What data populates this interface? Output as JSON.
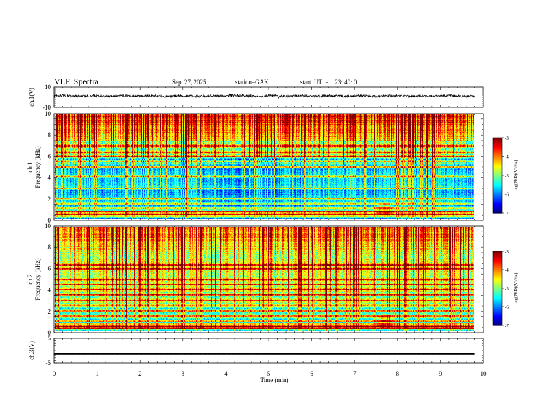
{
  "header": {
    "title": "VLF  Spectra",
    "date": "Sep. 27, 2025",
    "station": "station=GAK",
    "start": "start  UT  =    23: 40: 0"
  },
  "chart_data": [
    {
      "type": "line",
      "name": "ch1-waveform",
      "ylabel": "ch.1(V)",
      "ylim": [
        -10,
        10
      ],
      "ytick_labels": [
        "10",
        "-10"
      ],
      "xlim": [
        0,
        10
      ],
      "baseline_value": 1.2
    },
    {
      "type": "heatmap",
      "name": "ch1-spectrogram",
      "ylabel_line1": "ch.1",
      "ylabel_line2": "Frequency  (kHz)",
      "ylim": [
        0,
        10
      ],
      "ytick_labels": [
        "0",
        "2",
        "4",
        "6",
        "8",
        "10"
      ],
      "xlim": [
        0,
        9.8
      ],
      "colorbar": {
        "label": "log(PSD)(V²/Hz)",
        "range": [
          -7,
          -3
        ],
        "tick_labels": [
          "-3",
          "-4",
          "-5",
          "-6",
          "-7"
        ]
      },
      "bands_khz": [
        0.3,
        0.5,
        0.75,
        1.1,
        1.5,
        2.0,
        3.0,
        4.1,
        5.0,
        5.5,
        6.0,
        6.4,
        7.0
      ],
      "event_minute": 7.7
    },
    {
      "type": "heatmap",
      "name": "ch2-spectrogram",
      "ylabel_line1": "ch.2",
      "ylabel_line2": "Frequency  (kHz)",
      "ylim": [
        0,
        10
      ],
      "ytick_labels": [
        "0",
        "2",
        "4",
        "6",
        "8",
        "10"
      ],
      "xlim": [
        0,
        9.8
      ],
      "colorbar": {
        "label": "log(PSD)(V²/Hz)",
        "range": [
          -7,
          -3
        ],
        "tick_labels": [
          "-3",
          "-4",
          "-5",
          "-6",
          "-7"
        ]
      },
      "bands_khz": [
        0.3,
        0.5,
        1.0,
        1.5,
        2.0,
        2.5,
        3.0,
        3.5,
        4.0,
        4.5,
        5.0,
        6.0,
        6.4
      ],
      "event_minute": 7.7
    },
    {
      "type": "line",
      "name": "ch3-waveform",
      "ylabel": "ch.3(V)",
      "ylim": [
        -5,
        5
      ],
      "ytick_labels": [
        "5",
        "-5"
      ],
      "xlim": [
        0,
        10
      ],
      "baseline_value": -1.3,
      "xlabel": "Time  (min)",
      "xtick_labels": [
        "0",
        "1",
        "2",
        "3",
        "4",
        "5",
        "6",
        "7",
        "8",
        "9",
        "10"
      ]
    }
  ]
}
